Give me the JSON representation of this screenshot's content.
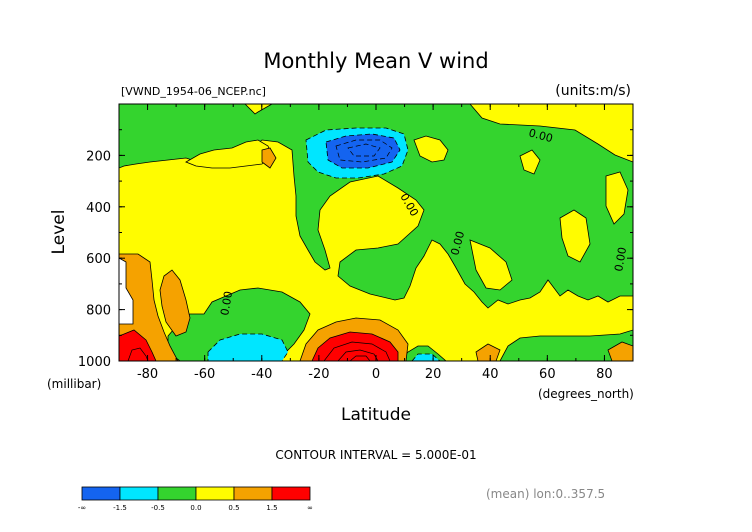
{
  "chart_data": {
    "type": "contour",
    "title": "Monthly Mean V wind",
    "file_label": "[VWND_1954-06_NCEP.nc]",
    "units_label": "(units:m/s)",
    "xlabel": "Latitude",
    "x_unit": "(degrees_north)",
    "ylabel": "Level",
    "y_unit": "(millibar)",
    "xlim": [
      -90,
      90
    ],
    "ylim": [
      1000,
      0
    ],
    "x_ticks": [
      -80,
      -60,
      -40,
      -20,
      0,
      20,
      40,
      60,
      80
    ],
    "y_ticks": [
      200,
      400,
      600,
      800,
      1000
    ],
    "contour_interval_text": "CONTOUR INTERVAL = 5.000E-01",
    "contour_labels": [
      "0.00",
      "0.00",
      "0.00",
      "0.00",
      "0.00"
    ],
    "footnote": "(mean) lon:0..357.5",
    "colorbar": {
      "boundary_labels": [
        "-∞",
        "-1.5",
        "-0.5",
        "0.0",
        "0.5",
        "1.5",
        "∞"
      ],
      "colors": [
        "#1464f0",
        "#00e6ff",
        "#34d42e",
        "#fffc00",
        "#f5a200",
        "#ff0000"
      ]
    },
    "notable_features": [
      {
        "description": "negative core (blue)",
        "lat_range": [
          -25,
          5
        ],
        "level_range": [
          130,
          240
        ]
      },
      {
        "description": "positive core (red)",
        "lat_range": [
          -20,
          8
        ],
        "level_range": [
          880,
          1000
        ]
      }
    ]
  }
}
